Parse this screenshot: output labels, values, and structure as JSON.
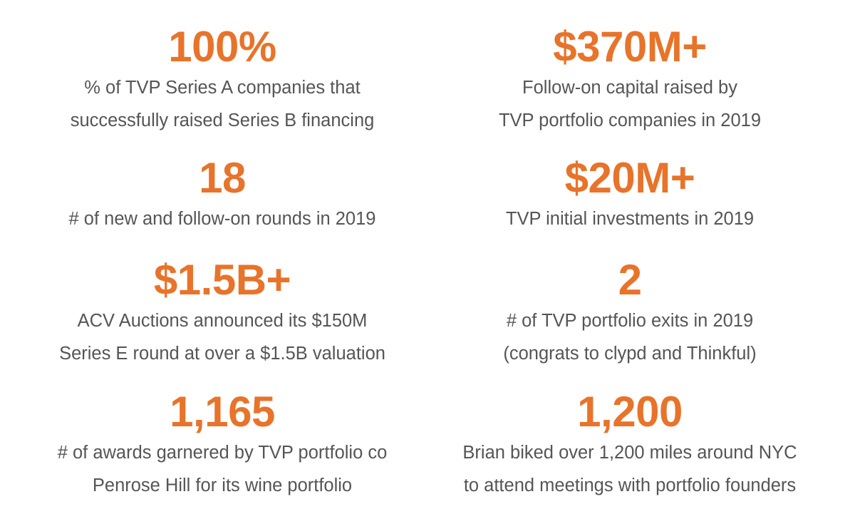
{
  "stats": [
    {
      "value": "100%",
      "lines": [
        "% of TVP Series A companies that",
        "successfully raised Series B financing"
      ]
    },
    {
      "value": "$370M+",
      "lines": [
        "Follow-on capital raised by",
        "TVP portfolio companies in 2019"
      ]
    },
    {
      "value": "18",
      "lines": [
        "# of new and follow-on rounds in 2019"
      ]
    },
    {
      "value": "$20M+",
      "lines": [
        "TVP initial investments in 2019"
      ]
    },
    {
      "value": "$1.5B+",
      "lines": [
        "ACV Auctions announced its $150M",
        "Series E round at over a $1.5B valuation"
      ]
    },
    {
      "value": "2",
      "lines": [
        "# of TVP portfolio exits in 2019",
        "(congrats to clypd and Thinkful)"
      ]
    },
    {
      "value": "1,165",
      "lines": [
        "# of awards garnered by TVP portfolio co",
        "Penrose Hill for its wine portfolio"
      ]
    },
    {
      "value": "1,200",
      "lines": [
        "Brian biked over 1,200 miles around NYC",
        "to attend meetings with portfolio founders"
      ]
    }
  ],
  "colors": {
    "accent": "#e8732a",
    "text": "#555555",
    "background": "#ffffff"
  }
}
